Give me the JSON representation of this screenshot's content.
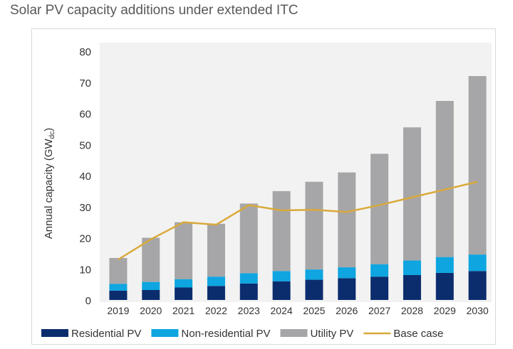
{
  "chart_data": {
    "type": "bar",
    "stacked": true,
    "title": "Solar PV capacity additions under extended ITC",
    "xlabel": "",
    "ylabel": "Annual capacity (GWdc)",
    "ylim": [
      0,
      80
    ],
    "yticks": [
      0,
      10,
      20,
      30,
      40,
      50,
      60,
      70,
      80
    ],
    "grid": false,
    "legend": "bottom",
    "categories": [
      "2019",
      "2020",
      "2021",
      "2022",
      "2023",
      "2024",
      "2025",
      "2026",
      "2027",
      "2028",
      "2029",
      "2030"
    ],
    "series": [
      {
        "name": "Residential PV",
        "type": "bar",
        "color": "#0b2d6e",
        "values": [
          3.0,
          3.2,
          4.0,
          4.5,
          5.3,
          6.0,
          6.5,
          7.0,
          7.5,
          8.0,
          8.7,
          9.3
        ]
      },
      {
        "name": "Non-residential PV",
        "type": "bar",
        "color": "#0ea5e0",
        "values": [
          2.2,
          2.6,
          2.7,
          3.0,
          3.3,
          3.3,
          3.3,
          3.5,
          4.0,
          4.7,
          5.1,
          5.3
        ]
      },
      {
        "name": "Utility PV",
        "type": "bar",
        "color": "#a6a6a8",
        "values": [
          8.3,
          14.2,
          18.3,
          17.0,
          22.4,
          25.7,
          28.2,
          30.5,
          35.5,
          42.8,
          50.2,
          57.4
        ]
      },
      {
        "name": "Base case",
        "type": "line",
        "color": "#d9a93a",
        "values": [
          13.0,
          19.5,
          25.0,
          24.2,
          30.5,
          28.8,
          29.0,
          28.3,
          30.5,
          33.0,
          35.5,
          38.0
        ]
      }
    ]
  }
}
